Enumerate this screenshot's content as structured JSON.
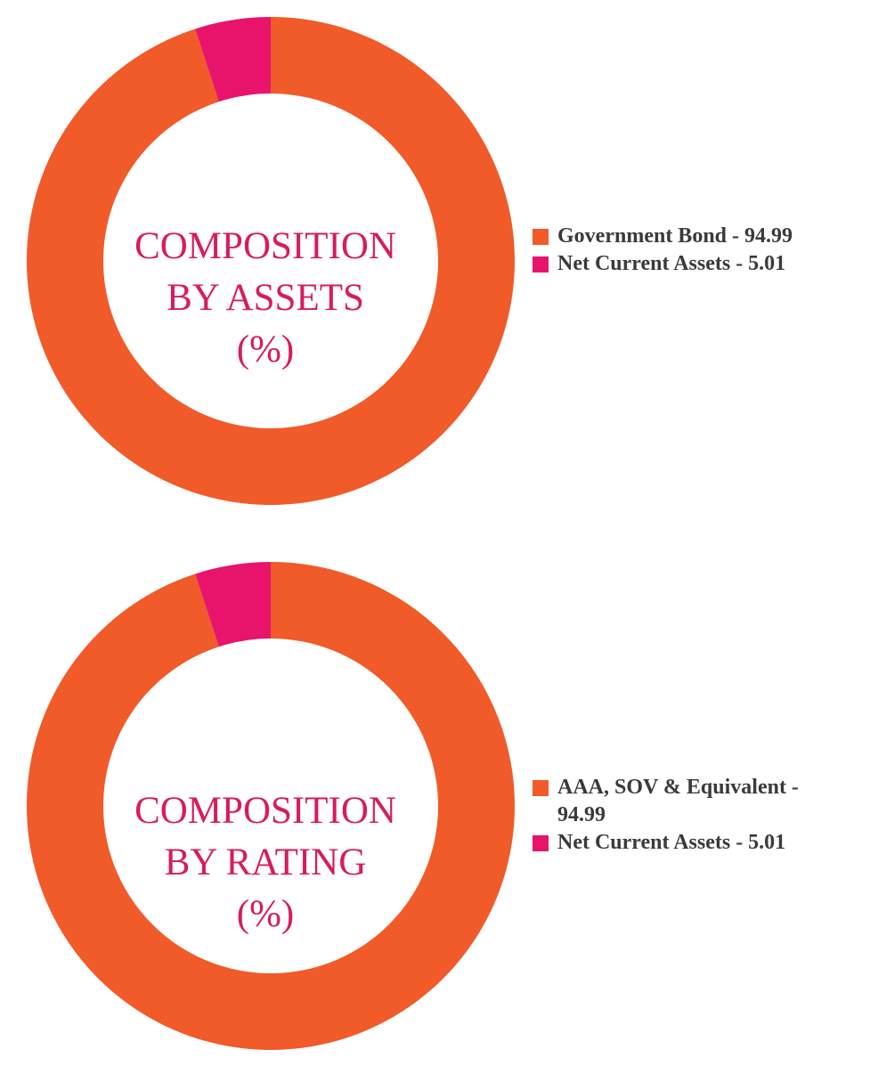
{
  "colors": {
    "primary": "#f15a29",
    "secondary": "#e8146c",
    "label": "#d81b60",
    "legend_text": "#3a3a3a"
  },
  "chart_data": [
    {
      "type": "pie",
      "title_lines": [
        "COMPOSITION",
        "BY ASSETS",
        "(%)"
      ],
      "categories": [
        "Government Bond",
        "Net Current Assets"
      ],
      "values": [
        94.99,
        5.01
      ],
      "colors": [
        "#f15a29",
        "#e8146c"
      ],
      "legend": [
        "Government Bond - 94.99",
        "Net Current Assets - 5.01"
      ],
      "legend_position": "right"
    },
    {
      "type": "pie",
      "title_lines": [
        "COMPOSITION",
        "BY RATING",
        "(%)"
      ],
      "categories": [
        "AAA, SOV & Equivalent",
        "Net Current Assets"
      ],
      "values": [
        94.99,
        5.01
      ],
      "colors": [
        "#f15a29",
        "#e8146c"
      ],
      "legend": [
        "AAA, SOV & Equivalent - 94.99",
        "Net Current Assets - 5.01"
      ],
      "legend_position": "right"
    }
  ]
}
